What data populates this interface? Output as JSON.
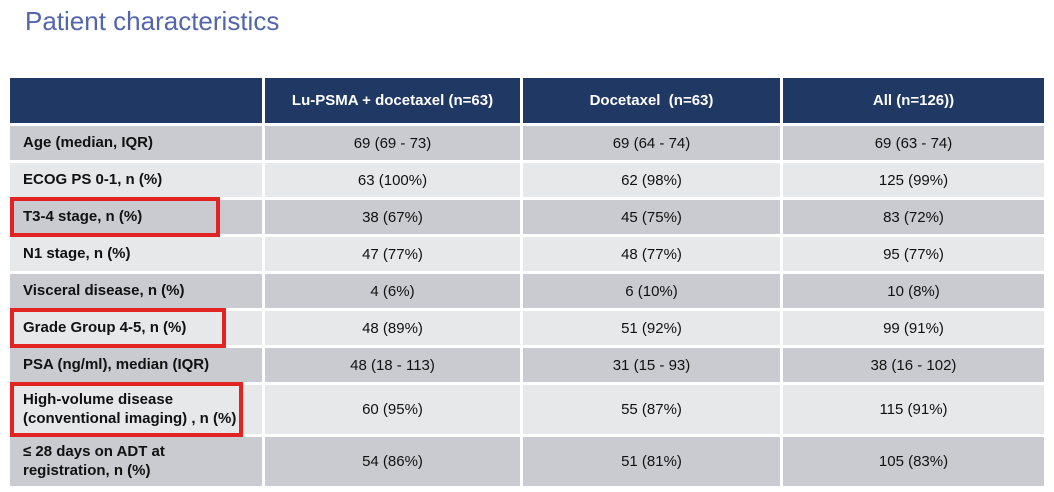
{
  "title": "Patient characteristics",
  "theme": {
    "title_color": "#5365ad",
    "header_bg": "#1f3864",
    "header_text": "#ffffff",
    "row_dark": "#cacbd0",
    "row_light": "#e7e8ea",
    "highlight_red": "#e32222"
  },
  "table": {
    "columns": [
      "",
      "Lu-PSMA + docetaxel (n=63)",
      "Docetaxel  (n=63)",
      "All (n=126))"
    ],
    "rows": [
      {
        "label": "Age (median, IQR)",
        "values": [
          "69 (69 - 73)",
          "69 (64 - 74)",
          "69 (63 - 74)"
        ],
        "highlighted": false
      },
      {
        "label": "ECOG PS 0-1, n (%)",
        "values": [
          "63 (100%)",
          "62 (98%)",
          "125 (99%)"
        ],
        "highlighted": false
      },
      {
        "label": "T3-4 stage, n (%)",
        "values": [
          "38 (67%)",
          "45 (75%)",
          "83 (72%)"
        ],
        "highlighted": true
      },
      {
        "label": "N1 stage, n (%)",
        "values": [
          "47 (77%)",
          "48 (77%)",
          "95 (77%)"
        ],
        "highlighted": false
      },
      {
        "label": "Visceral disease, n (%)",
        "values": [
          "4 (6%)",
          "6 (10%)",
          "10 (8%)"
        ],
        "highlighted": false
      },
      {
        "label": "Grade Group 4-5, n (%)",
        "values": [
          "48 (89%)",
          "51 (92%)",
          "99 (91%)"
        ],
        "highlighted": true
      },
      {
        "label": "PSA (ng/ml), median (IQR)",
        "values": [
          "48 (18 - 113)",
          "31 (15 - 93)",
          "38 (16 - 102)"
        ],
        "highlighted": false
      },
      {
        "label": "High-volume disease\n(conventional imaging) , n (%)",
        "values": [
          "60 (95%)",
          "55 (87%)",
          "115 (91%)"
        ],
        "highlighted": true
      },
      {
        "label": "≤ 28 days on ADT at\nregistration, n (%)",
        "values": [
          "54 (86%)",
          "51 (81%)",
          "105 (83%)"
        ],
        "highlighted": false
      }
    ]
  }
}
